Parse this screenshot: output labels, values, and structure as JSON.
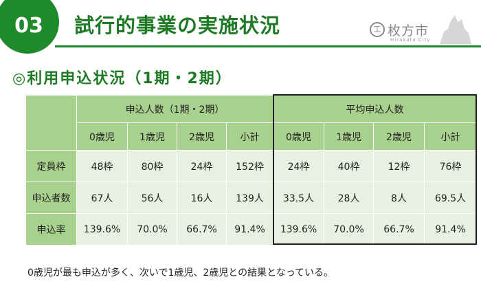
{
  "header": {
    "badge": "03",
    "title": "試行的事業の実施状況",
    "logo_mark": "工",
    "logo_text": "枚方市",
    "logo_sub": "Hirakata City"
  },
  "section_title": "◎利用申込状況（1期・2期）",
  "table": {
    "group_headers": [
      "申込人数（1期・2期）",
      "平均申込人数"
    ],
    "sub_headers": [
      "0歳児",
      "1歳児",
      "2歳児",
      "小計",
      "0歳児",
      "1歳児",
      "2歳児",
      "小計"
    ],
    "rows": [
      {
        "label": "定員枠",
        "cells": [
          "48枠",
          "80枠",
          "24枠",
          "152枠",
          "24枠",
          "40枠",
          "12枠",
          "76枠"
        ]
      },
      {
        "label": "申込者数",
        "cells": [
          "67人",
          "56人",
          "16人",
          "139人",
          "33.5人",
          "28人",
          "8人",
          "69.5人"
        ]
      },
      {
        "label": "申込率",
        "cells": [
          "139.6%",
          "70.0%",
          "66.7%",
          "91.4%",
          "139.6%",
          "70.0%",
          "66.7%",
          "91.4%"
        ]
      }
    ]
  },
  "footnote": "0歳児が最も申込が多く、次いで1歳児、2歳児との結果となっている。",
  "colors": {
    "accent_green": "#1f8a2a",
    "header_cell": "#a9d18e",
    "data_cell": "#e8f0e2"
  }
}
